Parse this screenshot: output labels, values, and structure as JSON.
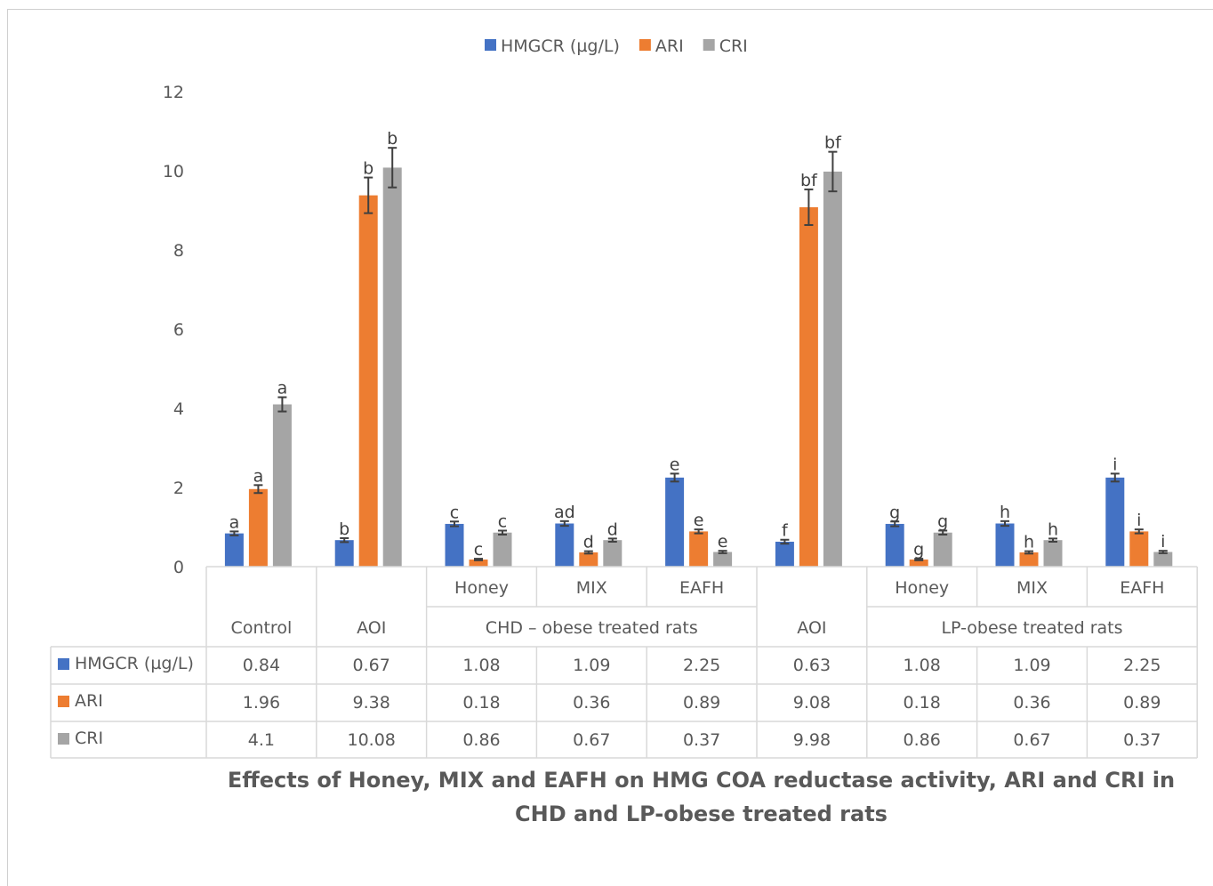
{
  "chart_data": {
    "type": "bar",
    "title": "",
    "xlabel": "",
    "ylabel": "",
    "ylim": [
      0,
      12
    ],
    "yticks": [
      "0",
      "2",
      "4",
      "6",
      "8",
      "10",
      "12"
    ],
    "grid": false,
    "legend_position": "top",
    "groups": [
      {
        "label": "Control",
        "subcategories": [
          ""
        ]
      },
      {
        "label": "AOI",
        "subcategories": [
          ""
        ]
      },
      {
        "label": "CHD – obese treated rats",
        "subcategories": [
          "Honey",
          "MIX",
          "EAFH"
        ]
      },
      {
        "label": "AOI",
        "subcategories": [
          ""
        ]
      },
      {
        "label": "LP-obese treated rats",
        "subcategories": [
          "Honey",
          "MIX",
          "EAFH"
        ]
      }
    ],
    "series": [
      {
        "name": "HMGCR (µg/L)",
        "color": "#4472C4",
        "values": [
          0.84,
          0.67,
          1.08,
          1.09,
          2.25,
          0.63,
          1.08,
          1.09,
          2.25
        ],
        "display_values": [
          "0.84",
          "0.67",
          "1.08",
          "1.09",
          "2.25",
          "0.63",
          "1.08",
          "1.09",
          "2.25"
        ],
        "errors": [
          0.05,
          0.05,
          0.06,
          0.06,
          0.1,
          0.05,
          0.06,
          0.06,
          0.1
        ],
        "labels": [
          "a",
          "b",
          "c",
          "ad",
          "e",
          "f",
          "g",
          "h",
          "i"
        ]
      },
      {
        "name": "ARI",
        "color": "#ED7D31",
        "values": [
          1.96,
          9.38,
          0.18,
          0.36,
          0.89,
          9.08,
          0.18,
          0.36,
          0.89
        ],
        "display_values": [
          "1.96",
          "9.38",
          "0.18",
          "0.36",
          "0.89",
          "9.08",
          "0.18",
          "0.36",
          "0.89"
        ],
        "errors": [
          0.1,
          0.45,
          0.02,
          0.03,
          0.05,
          0.45,
          0.02,
          0.03,
          0.05
        ],
        "labels": [
          "a",
          "b",
          "c",
          "d",
          "e",
          "bf",
          "g",
          "h",
          "i"
        ]
      },
      {
        "name": "CRI",
        "color": "#A5A5A5",
        "values": [
          4.1,
          10.08,
          0.86,
          0.67,
          0.37,
          9.98,
          0.86,
          0.67,
          0.37
        ],
        "display_values": [
          "4.1",
          "10.08",
          "0.86",
          "0.67",
          "0.37",
          "9.98",
          "0.86",
          "0.67",
          "0.37"
        ],
        "errors": [
          0.18,
          0.5,
          0.05,
          0.04,
          0.03,
          0.5,
          0.05,
          0.04,
          0.03
        ],
        "labels": [
          "a",
          "b",
          "c",
          "d",
          "e",
          "bf",
          "g",
          "h",
          "i"
        ]
      }
    ]
  },
  "caption": {
    "line1": "Effects of Honey, MIX and EAFH on HMG COA reductase activity, ARI and CRI in",
    "line2": "CHD and LP-obese treated rats"
  }
}
